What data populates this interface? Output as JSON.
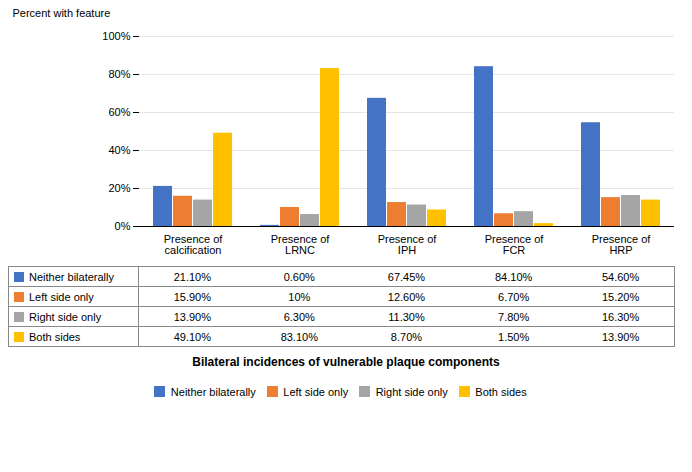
{
  "chart_data": {
    "type": "bar",
    "categories": [
      "Presence of\ncalcification",
      "Presence of\nLRNC",
      "Presence of\nIPH",
      "Presence of\nFCR",
      "Presence of\nHRP"
    ],
    "series": [
      {
        "name": "Neither bilaterally",
        "color": "#4472C4",
        "values": [
          21.1,
          0.6,
          67.45,
          84.1,
          54.6
        ],
        "value_labels": [
          "21.10%",
          "0.60%",
          "67.45%",
          "84.10%",
          "54.60%"
        ]
      },
      {
        "name": "Left side only",
        "color": "#ED7D31",
        "values": [
          15.9,
          10.0,
          12.6,
          6.7,
          15.2
        ],
        "value_labels": [
          "15.90%",
          "10%",
          "12.60%",
          "6.70%",
          "15.20%"
        ]
      },
      {
        "name": "Right side only",
        "color": "#A5A5A5",
        "values": [
          13.9,
          6.3,
          11.3,
          7.8,
          16.3
        ],
        "value_labels": [
          "13.90%",
          "6.30%",
          "11.30%",
          "7.80%",
          "16.30%"
        ]
      },
      {
        "name": "Both sides",
        "color": "#FFC000",
        "values": [
          49.1,
          83.1,
          8.7,
          1.5,
          13.9
        ],
        "value_labels": [
          "49.10%",
          "83.10%",
          "8.70%",
          "1.50%",
          "13.90%"
        ]
      }
    ],
    "ylabel": "Percent with feature",
    "xlabel": "Bilateral incidences of vulnerable plaque components",
    "ylim": [
      0,
      100
    ],
    "yticks": [
      {
        "value": 0,
        "label": "0%"
      },
      {
        "value": 20,
        "label": "20%"
      },
      {
        "value": 40,
        "label": "40%"
      },
      {
        "value": 60,
        "label": "60%"
      },
      {
        "value": 80,
        "label": "80%"
      },
      {
        "value": 100,
        "label": "100%"
      }
    ],
    "grid": true,
    "legend": "bottom"
  }
}
